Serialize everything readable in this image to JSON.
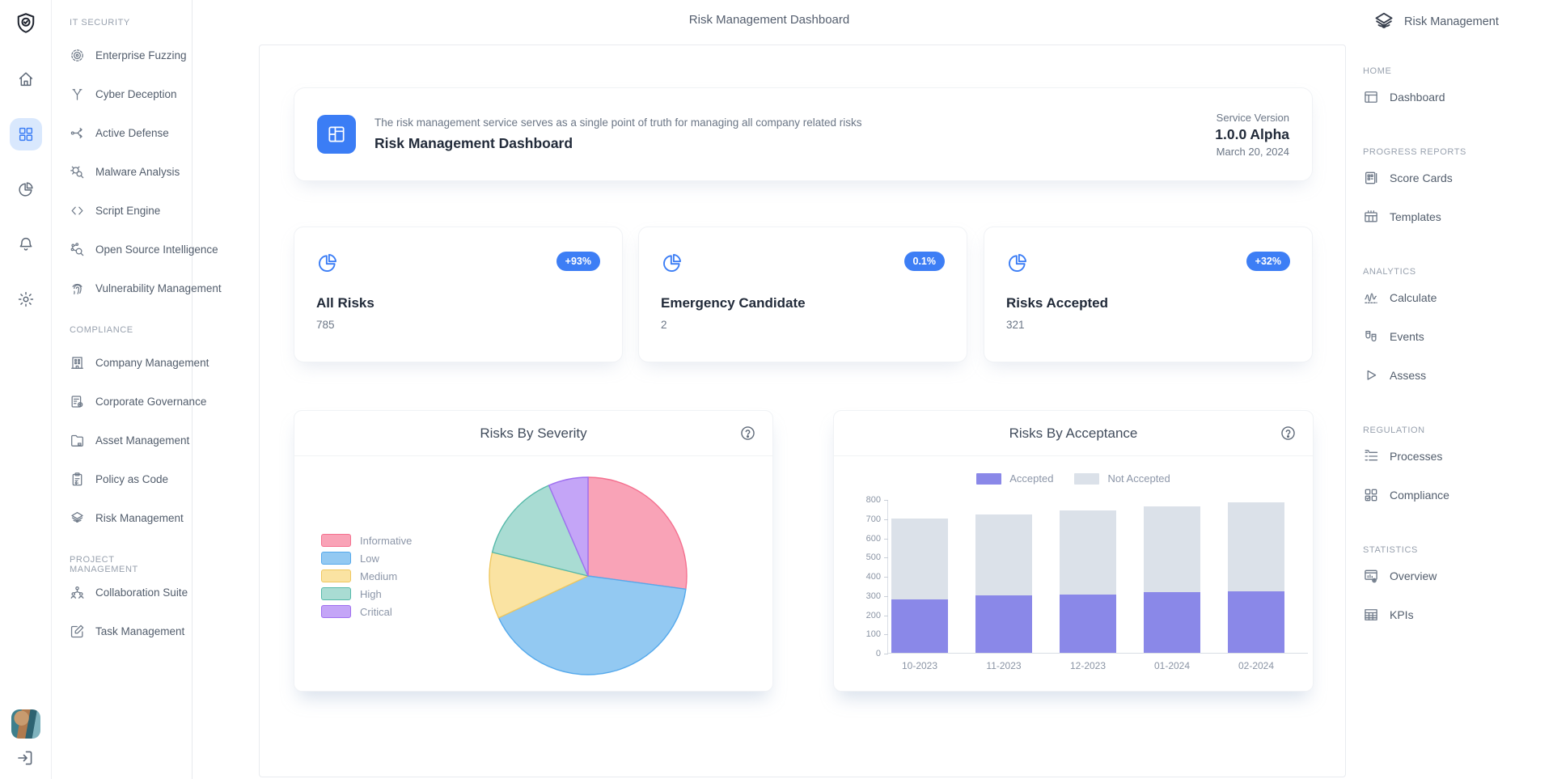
{
  "app": {
    "topbar_title": "Risk Management Dashboard",
    "brand_label": "Risk Management"
  },
  "rail": {
    "logo_icon": "shield-check",
    "items": [
      {
        "name": "home",
        "icon": "home",
        "active": false
      },
      {
        "name": "apps",
        "icon": "grid",
        "active": true
      },
      {
        "name": "reports",
        "icon": "pie",
        "active": false
      },
      {
        "name": "notifications",
        "icon": "bell",
        "active": false
      },
      {
        "name": "settings",
        "icon": "gear",
        "active": false
      }
    ],
    "avatar": "user-avatar",
    "logout_icon": "logout"
  },
  "sidebar": {
    "sections": [
      {
        "title": "IT SECURITY",
        "items": [
          {
            "label": "Enterprise Fuzzing",
            "icon": "target"
          },
          {
            "label": "Cyber Deception",
            "icon": "branch"
          },
          {
            "label": "Active Defense",
            "icon": "flow"
          },
          {
            "label": "Malware Analysis",
            "icon": "bug"
          },
          {
            "label": "Script Engine",
            "icon": "code"
          },
          {
            "label": "Open Source Intelligence",
            "icon": "osint"
          },
          {
            "label": "Vulnerability Management",
            "icon": "fingerprint"
          }
        ]
      },
      {
        "title": "COMPLIANCE",
        "items": [
          {
            "label": "Company Management",
            "icon": "building"
          },
          {
            "label": "Corporate Governance",
            "icon": "docgear"
          },
          {
            "label": "Asset Management",
            "icon": "folder"
          },
          {
            "label": "Policy as Code",
            "icon": "clipboard"
          },
          {
            "label": "Risk Management",
            "icon": "layerseye"
          }
        ]
      },
      {
        "title": "PROJECT MANAGEMENT",
        "items": [
          {
            "label": "Collaboration Suite",
            "icon": "users"
          },
          {
            "label": "Task Management",
            "icon": "edit"
          }
        ]
      }
    ]
  },
  "right_nav": {
    "title": "Risk Management",
    "title_icon": "layerseye",
    "sections": [
      {
        "title": "HOME",
        "items": [
          {
            "label": "Dashboard",
            "icon": "window"
          }
        ]
      },
      {
        "title": "PROGRESS REPORTS",
        "items": [
          {
            "label": "Score Cards",
            "icon": "scorecard"
          },
          {
            "label": "Templates",
            "icon": "table"
          }
        ]
      },
      {
        "title": "ANALYTICS",
        "items": [
          {
            "label": "Calculate",
            "icon": "wave"
          },
          {
            "label": "Events",
            "icon": "masks"
          },
          {
            "label": "Assess",
            "icon": "play"
          }
        ]
      },
      {
        "title": "REGULATION",
        "items": [
          {
            "label": "Processes",
            "icon": "processlist"
          },
          {
            "label": "Compliance",
            "icon": "gridcheck"
          }
        ]
      },
      {
        "title": "STATISTICS",
        "items": [
          {
            "label": "Overview",
            "icon": "statwin"
          },
          {
            "label": "KPIs",
            "icon": "kpitable"
          }
        ]
      }
    ]
  },
  "header_card": {
    "description": "The risk management service serves as a single point of truth for managing all company related risks",
    "title": "Risk Management Dashboard",
    "service_version_label": "Service Version",
    "version": "1.0.0 Alpha",
    "date": "March 20, 2024"
  },
  "stat_cards": [
    {
      "badge": "+93%",
      "title": "All Risks",
      "value": "785"
    },
    {
      "badge": "0.1%",
      "title": "Emergency Candidate",
      "value": "2"
    },
    {
      "badge": "+32%",
      "title": "Risks Accepted",
      "value": "321"
    }
  ],
  "colors": {
    "accent_blue": "#3B7DF5",
    "accepted_purple": "#8A88E8",
    "not_accepted_gray": "#DBE1E9"
  },
  "chart_data": [
    {
      "type": "pie",
      "title": "Risks By Severity",
      "legend_position": "left",
      "slices": [
        {
          "label": "Informative",
          "value": 213,
          "fill": "#F9A3B7",
          "stroke": "#F4708F"
        },
        {
          "label": "Low",
          "value": 321,
          "fill": "#93C9F2",
          "stroke": "#55A9EC"
        },
        {
          "label": "Medium",
          "value": 85,
          "fill": "#FAE3A2",
          "stroke": "#EFC75E"
        },
        {
          "label": "High",
          "value": 115,
          "fill": "#A9DCD3",
          "stroke": "#55B9A9"
        },
        {
          "label": "Critical",
          "value": 51,
          "fill": "#C4A5F7",
          "stroke": "#9F6FF0"
        }
      ]
    },
    {
      "type": "bar",
      "title": "Risks By Acceptance",
      "stacked": true,
      "categories": [
        "10-2023",
        "11-2023",
        "12-2023",
        "01-2024",
        "02-2024"
      ],
      "series": [
        {
          "name": "Accepted",
          "color": "#8A88E8",
          "values": [
            280,
            300,
            302,
            315,
            321
          ]
        },
        {
          "name": "Not Accepted",
          "color": "#DBE1E9",
          "values": [
            420,
            422,
            440,
            449,
            464
          ]
        }
      ],
      "ylabel": "",
      "xlabel": "",
      "ylim": [
        0,
        800
      ],
      "ytick_step": 100,
      "legend_position": "top"
    }
  ]
}
